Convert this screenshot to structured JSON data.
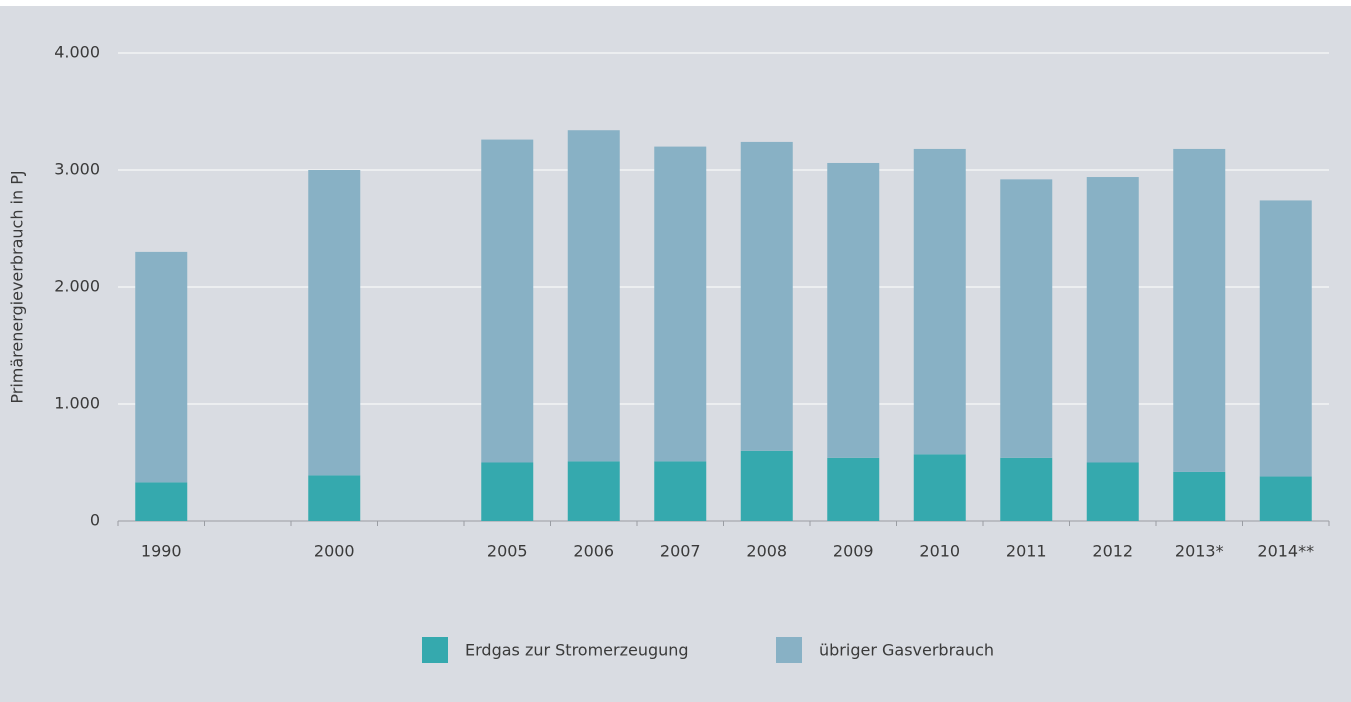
{
  "chart_data": {
    "type": "stacked-bar",
    "y_label": "Primärenergieverbrauch in PJ",
    "categories": [
      "1990",
      null,
      "2000",
      null,
      "2005",
      "2006",
      "2007",
      "2008",
      "2009",
      "2010",
      "2011",
      "2012",
      "2013*",
      "2014**"
    ],
    "series": [
      {
        "name": "Erdgas zur Stromerzeugung",
        "color": "#35a9ae",
        "values": [
          330,
          null,
          390,
          null,
          500,
          510,
          510,
          600,
          540,
          570,
          540,
          500,
          420,
          380
        ]
      },
      {
        "name": "übriger Gasverbrauch",
        "color": "#88b1c5",
        "values": [
          1970,
          null,
          2610,
          null,
          2760,
          2830,
          2690,
          2640,
          2520,
          2610,
          2380,
          2440,
          2760,
          2360
        ]
      }
    ],
    "ylim": [
      0,
      4000
    ],
    "yticks": [
      0,
      {
        "value": 1000,
        "label": "1.000"
      },
      {
        "value": 2000,
        "label": "2.000"
      },
      {
        "value": 3000,
        "label": "3.000"
      },
      {
        "value": 4000,
        "label": "4.000"
      }
    ],
    "grid": true
  }
}
